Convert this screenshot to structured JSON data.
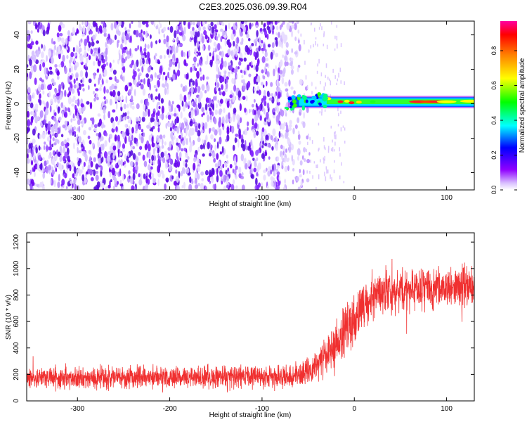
{
  "figure_title": "C2E3.2025.036.09.39.R04",
  "chart_data": [
    {
      "type": "heatmap",
      "xlabel": "Height of straight line (km)",
      "ylabel": "Frequency (Hz)",
      "xlim": [
        -355,
        130
      ],
      "ylim": [
        -50,
        48
      ],
      "xticks": [
        -300,
        -200,
        -100,
        0,
        100
      ],
      "yticks": [
        -40,
        -20,
        0,
        20,
        40
      ],
      "colorbar": {
        "label": "Normalized spectral amplitude",
        "range": [
          0,
          0.97
        ],
        "ticks": [
          "0.0",
          "0.2",
          "0.4",
          "0.6",
          "0.8"
        ],
        "colors": [
          "#ffffff",
          "#8f00ff",
          "#0000ff",
          "#00ffff",
          "#00ff00",
          "#ffff00",
          "#ff8000",
          "#ff0000",
          "#ff00a0"
        ]
      },
      "regions": [
        {
          "desc": "broadband noise (purple speckle)",
          "x": [
            -355,
            -50
          ],
          "y": [
            -50,
            48
          ],
          "amplitude": 0.05
        },
        {
          "desc": "narrow signal line near 0 Hz",
          "x": [
            -75,
            130
          ],
          "y": [
            -2,
            4
          ],
          "amplitude": 0.9
        }
      ]
    },
    {
      "type": "line",
      "color": "#f03030",
      "xlabel": "Height of straight line (km)",
      "ylabel": "SNR (10 * v/v)",
      "xlim": [
        -355,
        130
      ],
      "ylim": [
        0,
        1270
      ],
      "xticks": [
        -300,
        -200,
        -100,
        0,
        100
      ],
      "yticks": [
        0,
        200,
        400,
        600,
        800,
        1000,
        1200
      ],
      "envelope": {
        "x": [
          -355,
          -300,
          -200,
          -100,
          -60,
          -40,
          -20,
          0,
          20,
          40,
          60,
          80,
          100,
          130
        ],
        "mean": [
          170,
          175,
          180,
          185,
          190,
          260,
          420,
          620,
          790,
          820,
          830,
          850,
          860,
          860
        ],
        "spread": [
          120,
          120,
          120,
          120,
          130,
          180,
          260,
          320,
          260,
          220,
          220,
          220,
          240,
          220
        ]
      }
    }
  ]
}
